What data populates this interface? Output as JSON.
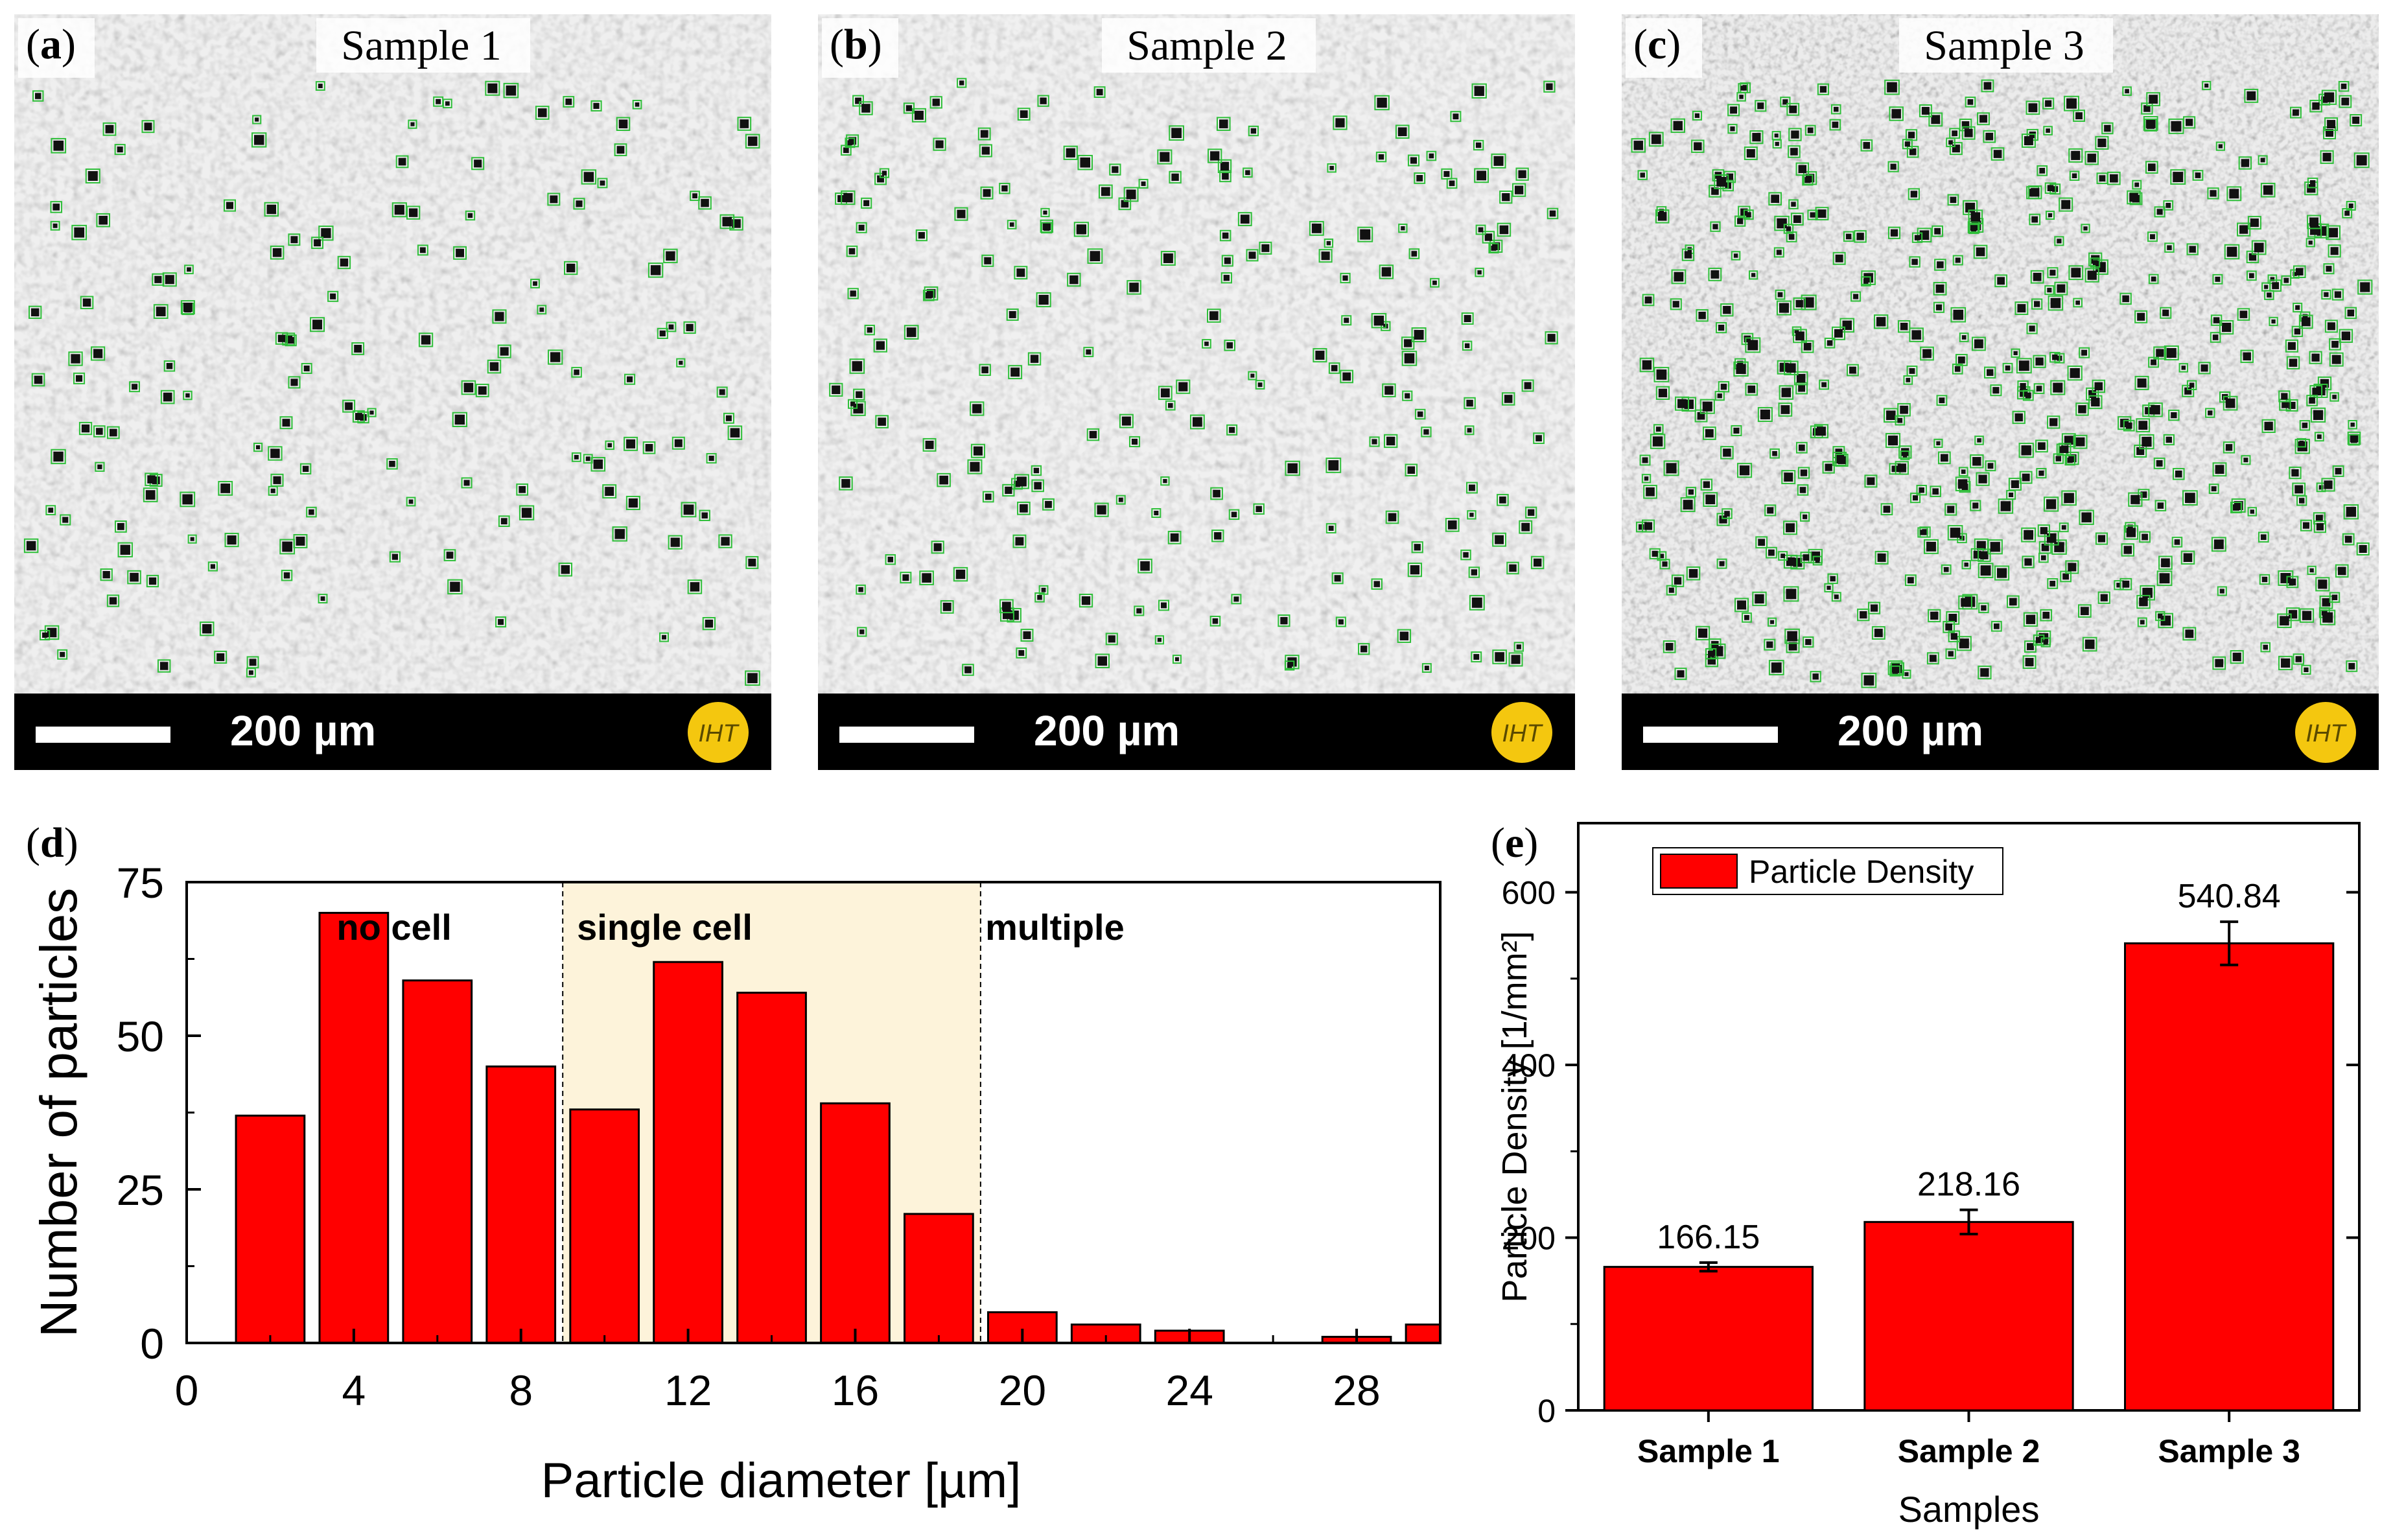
{
  "panels": {
    "a": {
      "tag_letter": "a",
      "sample_label": "Sample 1",
      "scale_text": "200 µm",
      "logo_text": "IHT",
      "detections_label": "Detected particles (green boxes)"
    },
    "b": {
      "tag_letter": "b",
      "sample_label": "Sample 2",
      "scale_text": "200 µm",
      "logo_text": "IHT"
    },
    "c": {
      "tag_letter": "c",
      "sample_label": "Sample 3",
      "scale_text": "200 µm",
      "logo_text": "IHT"
    },
    "d": {
      "tag_letter": "d"
    },
    "e": {
      "tag_letter": "e"
    }
  },
  "colors": {
    "bar": "#ff0000",
    "region_single_cell": "#fdf3da",
    "detection_box": "#2fbf3a",
    "logo": "#f4c70f"
  },
  "chart_data": [
    {
      "type": "bar",
      "panel": "d",
      "title": "",
      "xlabel": "Particle diameter [µm]",
      "ylabel": "Number of particles",
      "xlim": [
        0,
        30
      ],
      "ylim": [
        0,
        75
      ],
      "xticks": [
        0,
        4,
        8,
        12,
        16,
        20,
        24,
        28
      ],
      "yticks": [
        0,
        25,
        50,
        75
      ],
      "bin_width": 2,
      "bin_centers": [
        2,
        4,
        6,
        8,
        10,
        12,
        14,
        16,
        18,
        20,
        22,
        24,
        26,
        28,
        30
      ],
      "values": [
        37,
        70,
        59,
        45,
        38,
        62,
        57,
        39,
        21,
        5,
        3,
        2,
        0,
        1,
        3
      ],
      "regions": [
        {
          "label": "no cell",
          "from": 0,
          "to": 9
        },
        {
          "label": "single cell",
          "from": 9,
          "to": 19
        },
        {
          "label": "multiple",
          "from": 19,
          "to": 30
        }
      ]
    },
    {
      "type": "bar",
      "panel": "e",
      "title": "",
      "xlabel": "Samples",
      "ylabel": "Particle Density [1/mm²]",
      "ylim": [
        0,
        680
      ],
      "yticks": [
        0,
        200,
        400,
        600
      ],
      "categories": [
        "Sample 1",
        "Sample 2",
        "Sample 3"
      ],
      "values": [
        166.15,
        218.16,
        540.84
      ],
      "errors": [
        5,
        14,
        25
      ],
      "data_labels": [
        "166.15",
        "218.16",
        "540.84"
      ],
      "legend": [
        "Particle Density"
      ],
      "legend_position": "top-left"
    }
  ]
}
